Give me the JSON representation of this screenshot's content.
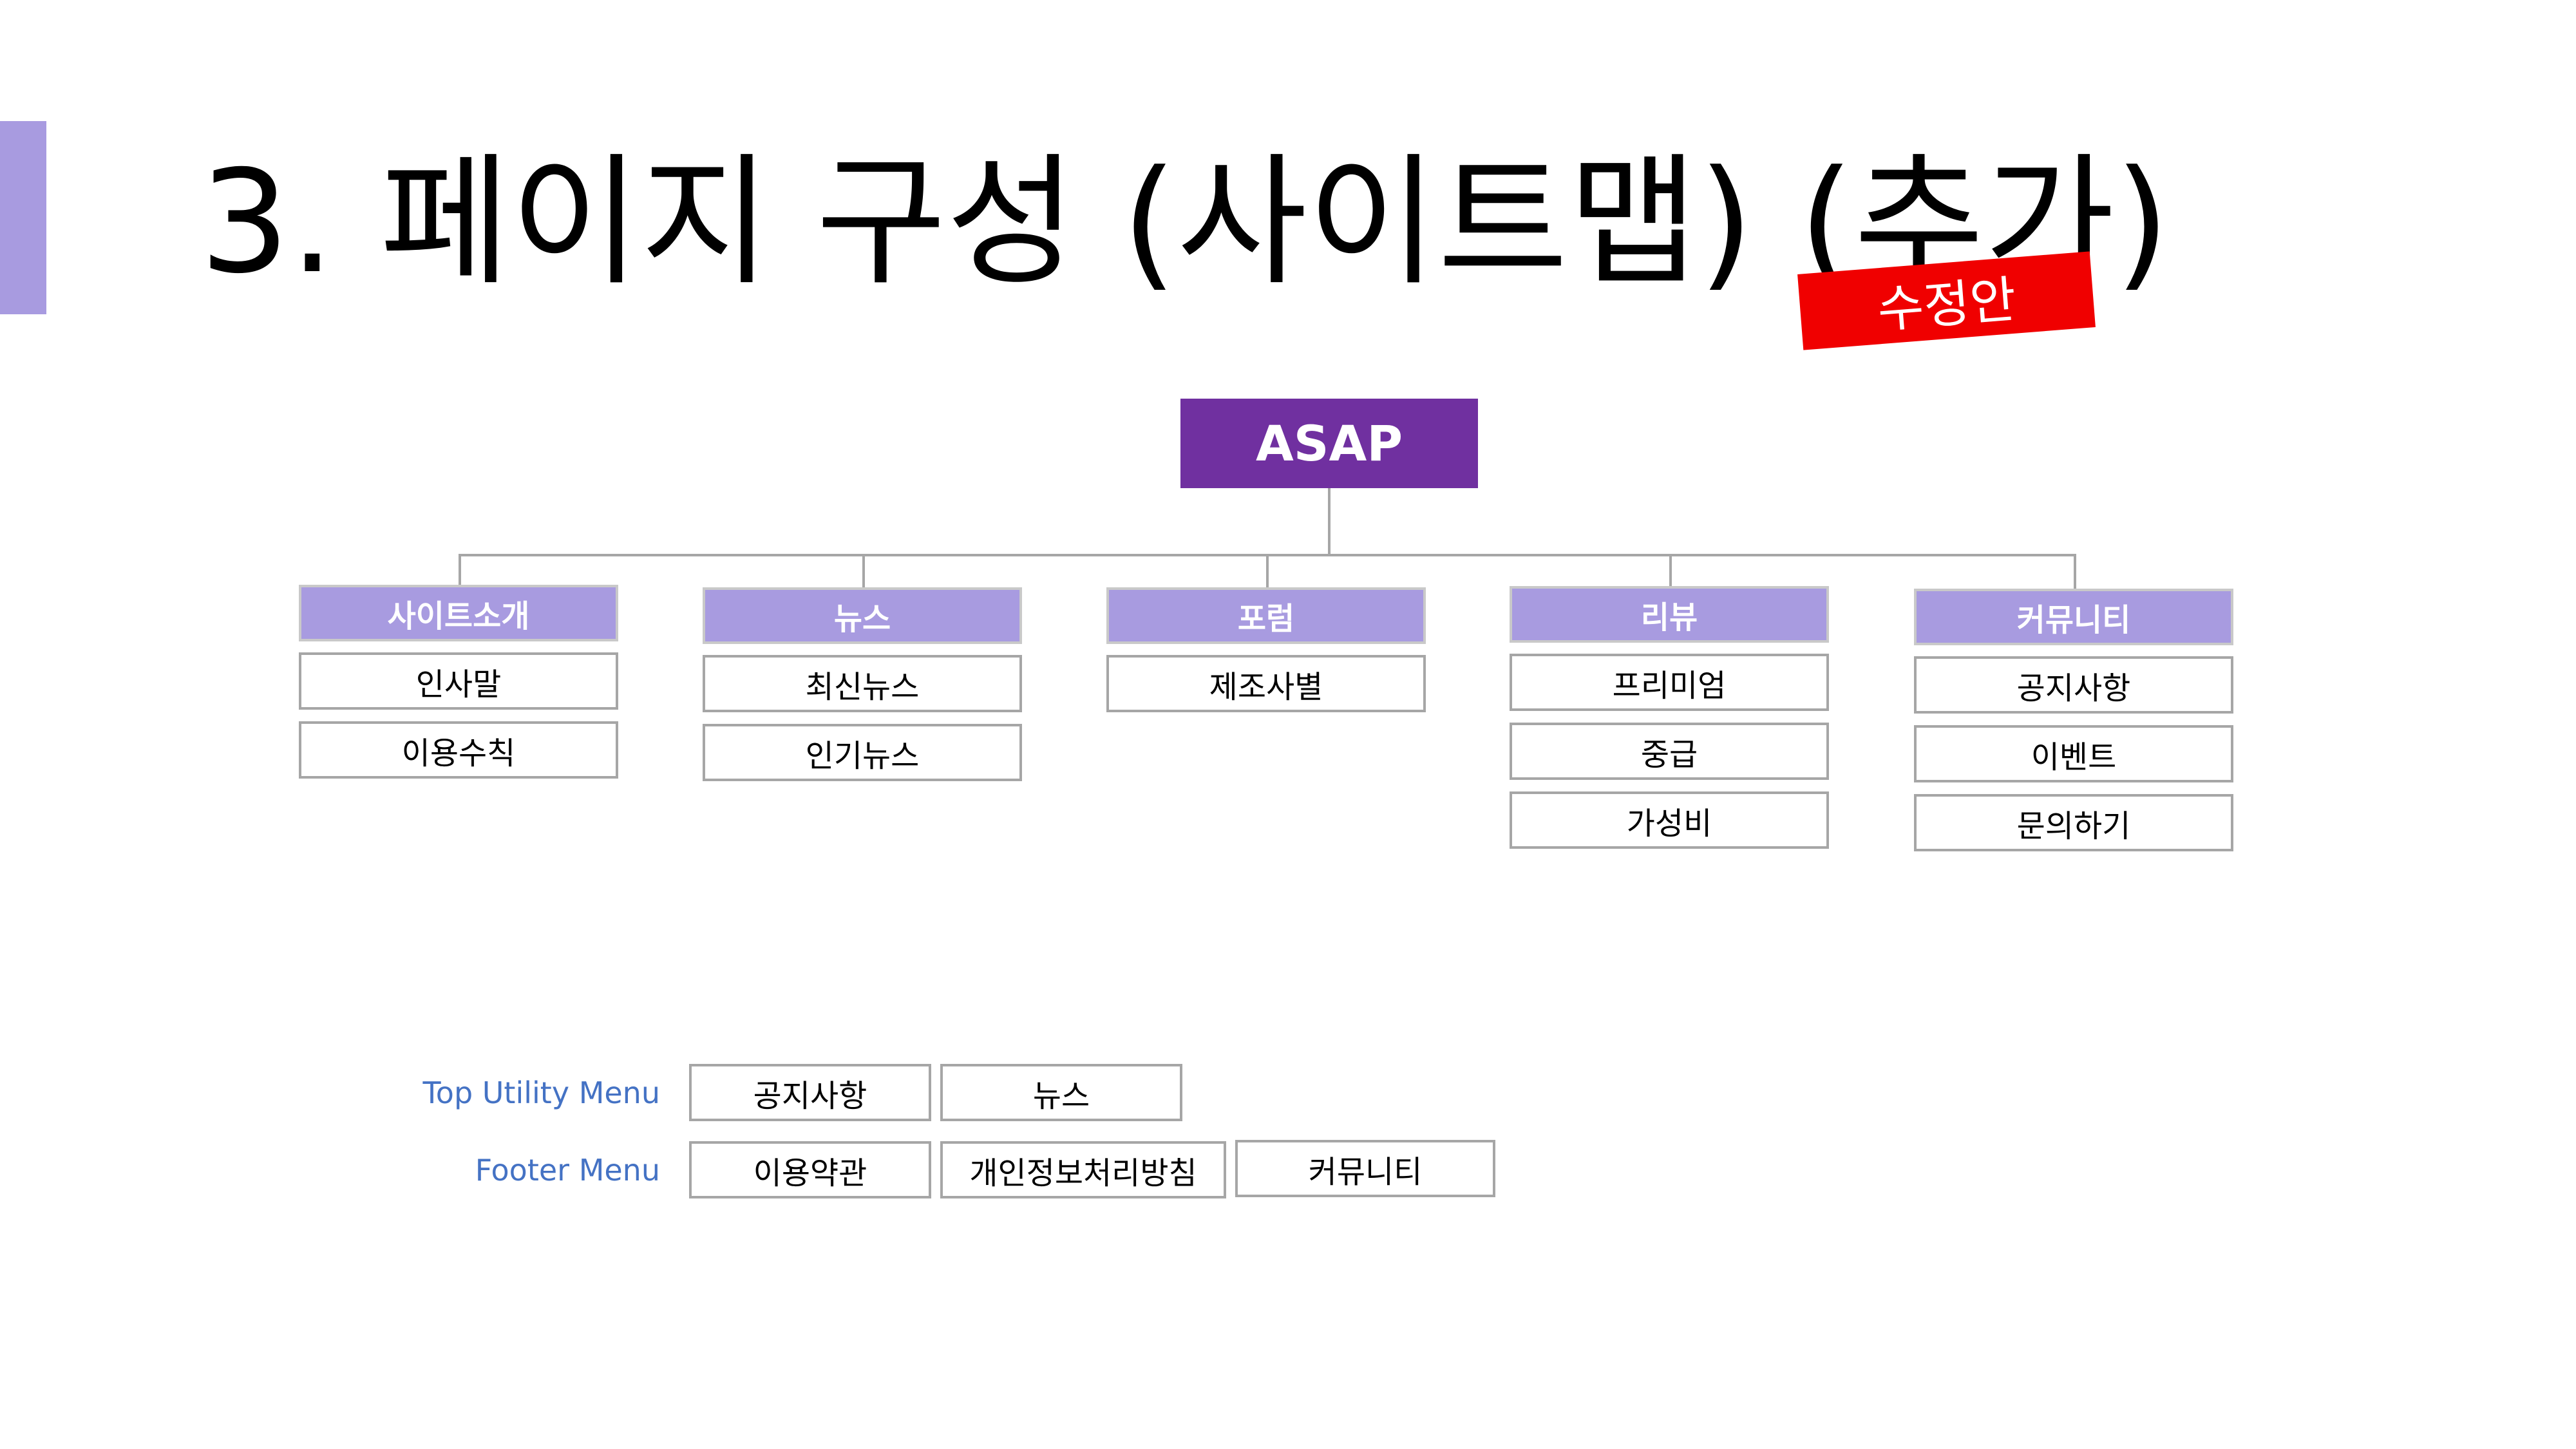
{
  "title": "3. 페이지 구성 (사이트맵) (추가)",
  "stamp": "수정안",
  "root": "ASAP",
  "categories": [
    {
      "label": "사이트소개",
      "items": [
        "인사말",
        "이용수칙"
      ]
    },
    {
      "label": "뉴스",
      "items": [
        "최신뉴스",
        "인기뉴스"
      ]
    },
    {
      "label": "포럼",
      "items": [
        "제조사별"
      ]
    },
    {
      "label": "리뷰",
      "items": [
        "프리미엄",
        "중급",
        "가성비"
      ]
    },
    {
      "label": "커뮤니티",
      "items": [
        "공지사항",
        "이벤트",
        "문의하기"
      ]
    }
  ],
  "top_utility_menu": {
    "label": "Top Utility Menu",
    "items": [
      "공지사항",
      "뉴스"
    ]
  },
  "footer_menu": {
    "label": "Footer Menu",
    "items": [
      "이용약관",
      "개인정보처리방침",
      "커뮤니티"
    ]
  },
  "colors": {
    "accent": "#a89be0",
    "root": "#7030a0",
    "stamp": "#f00000",
    "menu_label": "#4472c4",
    "border": "#a6a6a6"
  }
}
